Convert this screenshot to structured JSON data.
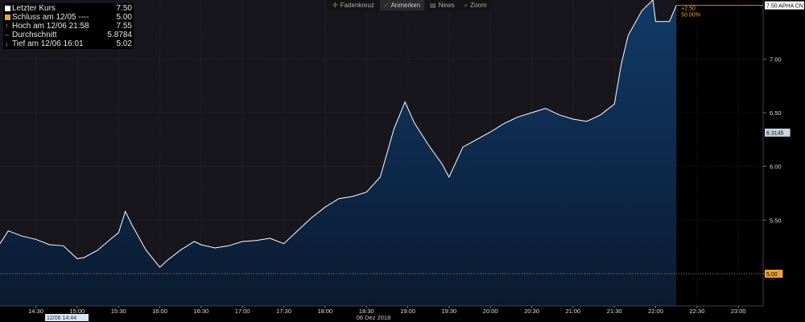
{
  "toolbar": {
    "crosshair_label": "Fadenkreuz",
    "annotate_label": "Anmerken",
    "news_label": "News",
    "zoom_label": "Zoom"
  },
  "legend": [
    {
      "label": "Letzter Kurs",
      "value": "7.50",
      "color": "#ffffff",
      "marker": "square"
    },
    {
      "label": "Schluss am 12/05 ----",
      "value": "5.00",
      "color": "#f0a030",
      "marker": "square"
    },
    {
      "label": "Hoch am 12/06 21:58",
      "value": "7.55",
      "color": "#aaaaaa",
      "marker": "up"
    },
    {
      "label": "Durchschnitt",
      "value": "5.8784",
      "color": "#aaaaaa",
      "marker": "dash"
    },
    {
      "label": "Tief am 12/06 16:01",
      "value": "5.02",
      "color": "#aaaaaa",
      "marker": "down"
    }
  ],
  "chart_data": {
    "type": "area",
    "xlabel": "06 Dez 2018",
    "x_ticks": [
      "14:30",
      "15:00",
      "15:30",
      "16:00",
      "16:30",
      "17:00",
      "17:30",
      "18:00",
      "18:30",
      "19:00",
      "19:30",
      "20:00",
      "20:30",
      "21:00",
      "21:30",
      "22:00",
      "22:30",
      "23:00"
    ],
    "start_label": "12/06 14:44",
    "y_ticks": [
      "5.00",
      "5.50",
      "6.00",
      "6.50",
      "7.00"
    ],
    "ylim": [
      4.7,
      7.55
    ],
    "x_domain": [
      "14:04",
      "23:18"
    ],
    "x": [
      "14:04",
      "14:10",
      "14:20",
      "14:30",
      "14:40",
      "14:50",
      "15:00",
      "15:05",
      "15:15",
      "15:25",
      "15:30",
      "15:35",
      "15:40",
      "15:50",
      "16:00",
      "16:05",
      "16:15",
      "16:25",
      "16:30",
      "16:40",
      "16:50",
      "17:00",
      "17:10",
      "17:20",
      "17:30",
      "17:40",
      "17:50",
      "18:00",
      "18:10",
      "18:20",
      "18:30",
      "18:40",
      "18:50",
      "18:58",
      "19:05",
      "19:15",
      "19:25",
      "19:30",
      "19:40",
      "19:50",
      "20:00",
      "20:10",
      "20:20",
      "20:30",
      "20:40",
      "20:50",
      "21:00",
      "21:10",
      "21:20",
      "21:30",
      "21:35",
      "21:40",
      "21:50",
      "21:58",
      "22:00",
      "22:05",
      "22:10",
      "22:15"
    ],
    "series": [
      {
        "values": [
          5.28,
          5.4,
          5.35,
          5.32,
          5.27,
          5.26,
          5.14,
          5.15,
          5.22,
          5.33,
          5.38,
          5.58,
          5.45,
          5.22,
          5.06,
          5.12,
          5.22,
          5.3,
          5.27,
          5.24,
          5.26,
          5.3,
          5.31,
          5.33,
          5.28,
          5.4,
          5.52,
          5.62,
          5.7,
          5.72,
          5.76,
          5.9,
          6.35,
          6.6,
          6.4,
          6.2,
          6.02,
          5.9,
          6.18,
          6.25,
          6.32,
          6.4,
          6.46,
          6.5,
          6.54,
          6.48,
          6.44,
          6.42,
          6.48,
          6.58,
          6.95,
          7.22,
          7.45,
          7.55,
          7.35,
          7.35,
          7.35,
          7.5
        ]
      }
    ],
    "reference_lines": [
      {
        "label": "Schluss am 12/05",
        "value": 5.0,
        "color": "#f0a030"
      },
      {
        "label": "Letzter Kurs",
        "value": 7.5,
        "color": "#f0a030"
      }
    ],
    "badges": [
      {
        "text": "7.50 APHA CN",
        "value": 7.5,
        "bg": "#ffffff",
        "fg": "#000000"
      },
      {
        "text": "6.3145",
        "value": 6.3145,
        "bg": "#c8d8e8",
        "fg": "#000000"
      },
      {
        "text": "5.00",
        "value": 5.0,
        "bg": "#f0a030",
        "fg": "#000000"
      }
    ],
    "change_annotation": {
      "line1": "+2.50",
      "line2": "50.00%",
      "color": "#f0a030"
    },
    "colors": {
      "line": "#ffffff",
      "area_top": "#123a68",
      "area_bottom": "#0a1a30",
      "grid": "#3a3a3a",
      "background": "#16161c",
      "future_background": "#000000"
    }
  }
}
